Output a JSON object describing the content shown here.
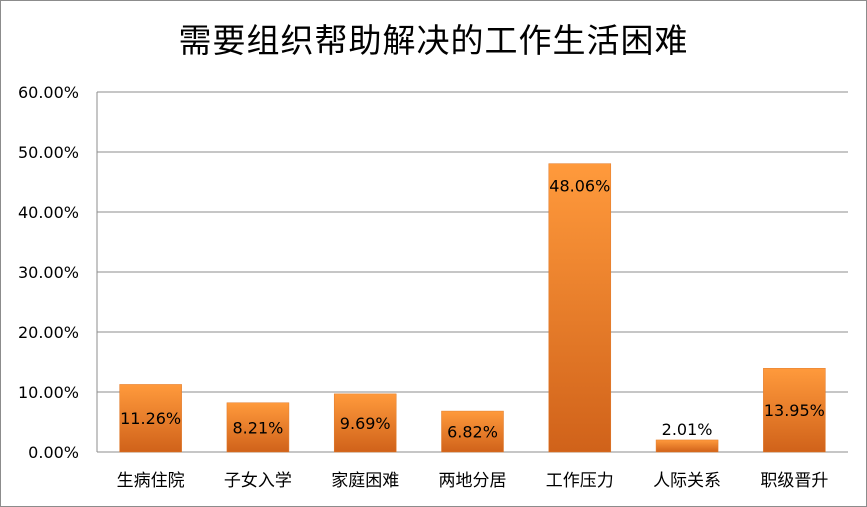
{
  "chart_data": {
    "type": "bar",
    "title": "需要组织帮助解决的工作生活困难",
    "categories": [
      "生病住院",
      "子女入学",
      "家庭困难",
      "两地分居",
      "工作压力",
      "人际关系",
      "职级晋升"
    ],
    "values": [
      11.26,
      8.21,
      9.69,
      6.82,
      48.06,
      2.01,
      13.95
    ],
    "data_labels": [
      "11.26%",
      "8.21%",
      "9.69%",
      "6.82%",
      "48.06%",
      "2.01%",
      "13.95%"
    ],
    "ylim": [
      0,
      60
    ],
    "yticks": [
      "0.00%",
      "10.00%",
      "20.00%",
      "30.00%",
      "40.00%",
      "50.00%",
      "60.00%"
    ],
    "xlabel": "",
    "ylabel": "",
    "grid": true,
    "legend": "none",
    "colors": {
      "bar_top": "#ff9a3c",
      "bar_bottom": "#d0621a",
      "grid": "#8c8c8c"
    }
  }
}
